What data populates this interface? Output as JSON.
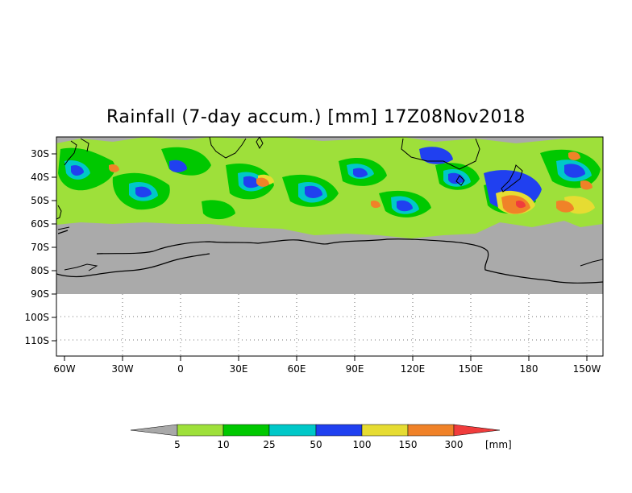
{
  "title": "Rainfall (7-day accum.) [mm] 17Z08Nov2018",
  "map": {
    "lat_labels": [
      "30S",
      "40S",
      "50S",
      "60S",
      "70S",
      "80S",
      "90S",
      "100S",
      "110S"
    ],
    "lon_labels": [
      "60W",
      "30W",
      "0",
      "30E",
      "60E",
      "90E",
      "120E",
      "150E",
      "180",
      "150W"
    ],
    "grid": "dotted",
    "colors": {
      "no_data": "#aaaaaa",
      "background": "#ffffff",
      "coast": "#000000"
    }
  },
  "legend": {
    "unit": "[mm]",
    "labels": [
      "5",
      "10",
      "25",
      "50",
      "100",
      "150",
      "300"
    ],
    "bins": [
      {
        "color": "#a8a8a8"
      },
      {
        "color": "#9ee03a"
      },
      {
        "color": "#00c800"
      },
      {
        "color": "#00c8c8"
      },
      {
        "color": "#2040f0"
      },
      {
        "color": "#e6dc32"
      },
      {
        "color": "#f08228"
      },
      {
        "color": "#f03c3c"
      }
    ]
  }
}
